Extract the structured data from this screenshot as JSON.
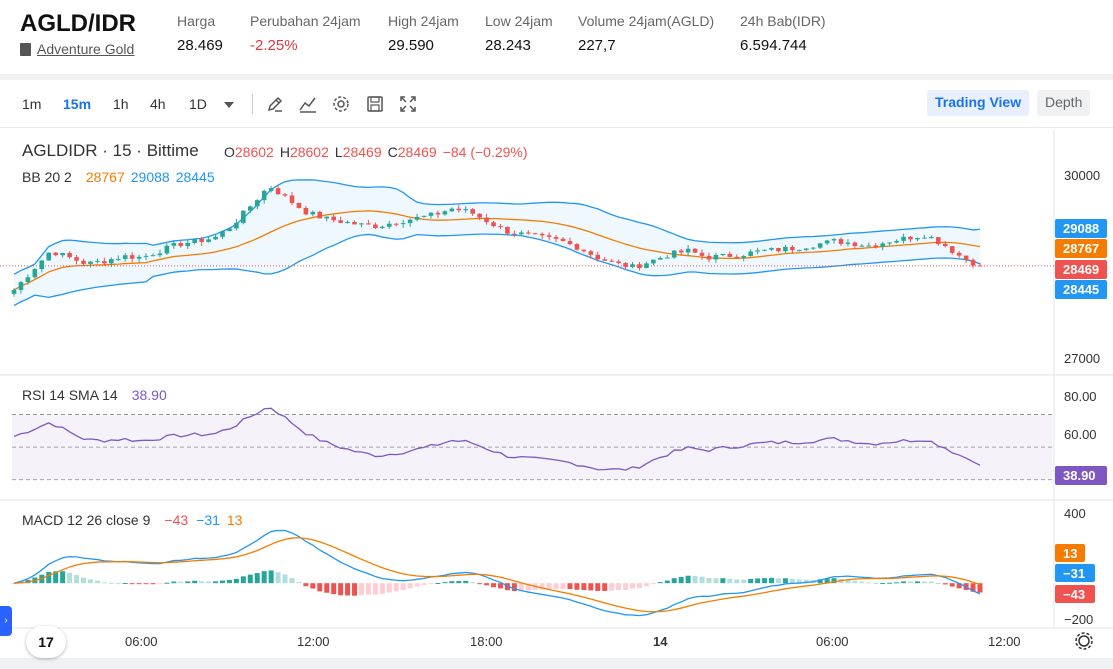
{
  "header": {
    "pair": "AGLD/IDR",
    "name": "Adventure Gold",
    "stats": [
      {
        "label": "Harga",
        "value": "28.469",
        "neg": false
      },
      {
        "label": "Perubahan 24jam",
        "value": "-2.25%",
        "neg": true
      },
      {
        "label": "High 24jam",
        "value": "29.590",
        "neg": false
      },
      {
        "label": "Low 24jam",
        "value": "28.243",
        "neg": false
      },
      {
        "label": "Volume 24jam(AGLD)",
        "value": "227,7",
        "neg": false
      },
      {
        "label": "24h Bab(IDR)",
        "value": "6.594.744",
        "neg": false
      }
    ]
  },
  "toolbar": {
    "timeframes": [
      "1m",
      "15m",
      "1h",
      "4h",
      "1D"
    ],
    "active_timeframe": "15m",
    "tools": [
      "pencil-icon",
      "indicator-icon",
      "gear-icon",
      "save-icon",
      "fullscreen-icon"
    ],
    "trading_view": "Trading View",
    "depth": "Depth"
  },
  "legend": {
    "symbol": "AGLDIDR · 15 · Bittime",
    "o_label": "O",
    "o": "28602",
    "h_label": "H",
    "h": "28602",
    "l_label": "L",
    "l": "28469",
    "c_label": "C",
    "c": "28469",
    "change": "−84 (−0.29%)",
    "bb_label": "BB 20 2",
    "bb_mid": "28767",
    "bb_upper": "29088",
    "bb_lower": "28445",
    "rsi_label": "RSI 14 SMA 14",
    "rsi_value": "38.90",
    "macd_label": "MACD 12 26 close 9",
    "macd_hist": "−43",
    "macd_line": "−31",
    "macd_signal": "13"
  },
  "price_axis": [
    "30000",
    "27000"
  ],
  "rsi_axis": [
    "80.00",
    "60.00"
  ],
  "macd_axis": [
    "400",
    "−200"
  ],
  "price_tags": {
    "upper": "29088",
    "mid": "28767",
    "last": "28469",
    "lower": "28445"
  },
  "rsi_tag": "38.90",
  "macd_tags": {
    "signal": "13",
    "macd": "−31",
    "hist": "−43"
  },
  "time_axis": [
    "06:00",
    "12:00",
    "18:00",
    "14",
    "06:00",
    "12:00"
  ],
  "colors": {
    "up": "#26a69a",
    "down": "#ef5350",
    "bb_mid": "#f57c00",
    "bb_band": "#2196f3",
    "rsi": "#7e57c2",
    "macd": "#2196f3",
    "signal": "#f57c00"
  },
  "side_arrow": "›",
  "tv_logo": "17",
  "chart_data": {
    "type": "candlestick",
    "interval": "15m",
    "close_trace": [
      28100,
      28400,
      28700,
      28600,
      28500,
      28550,
      28620,
      28600,
      28700,
      28800,
      28850,
      28900,
      29100,
      29400,
      29700,
      29500,
      29300,
      29200,
      29150,
      29100,
      29080,
      29150,
      29200,
      29250,
      29350,
      29300,
      29150,
      29000,
      28950,
      28900,
      28850,
      28750,
      28600,
      28500,
      28450,
      28550,
      28650,
      28700,
      28600,
      28620,
      28650,
      28700,
      28720,
      28750,
      28800,
      28850,
      28820,
      28780,
      28850,
      28900,
      28950,
      28800,
      28600,
      28469
    ]
  }
}
